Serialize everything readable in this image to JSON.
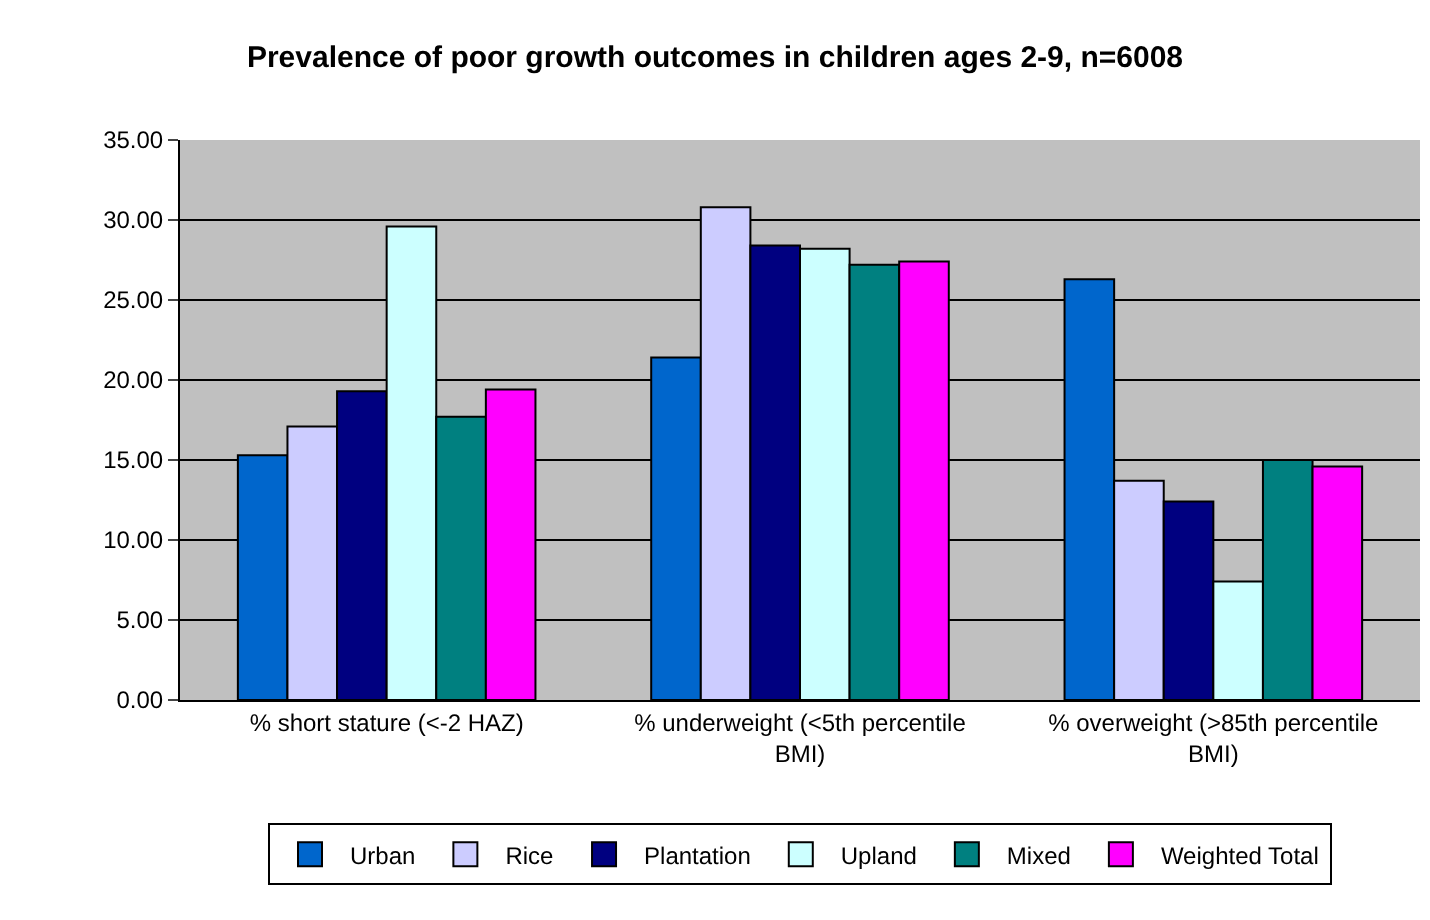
{
  "chart_data": {
    "type": "bar",
    "title": "Prevalence of poor growth outcomes in children ages 2-9, n=6008",
    "categories": [
      "% short stature (<-2 HAZ)",
      "% underweight (<5th percentile BMI)",
      "% overweight (>85th percentile BMI)"
    ],
    "series": [
      {
        "name": "Urban",
        "color": "#0066cc",
        "values": [
          15.3,
          21.4,
          26.3
        ]
      },
      {
        "name": "Rice",
        "color": "#ccccff",
        "values": [
          17.1,
          30.8,
          13.7
        ]
      },
      {
        "name": "Plantation",
        "color": "#000080",
        "values": [
          19.3,
          28.4,
          12.4
        ]
      },
      {
        "name": "Upland",
        "color": "#ccffff",
        "values": [
          29.6,
          28.2,
          7.4
        ]
      },
      {
        "name": "Mixed",
        "color": "#008080",
        "values": [
          17.7,
          27.2,
          15.0
        ]
      },
      {
        "name": "Weighted Total",
        "color": "#ff00ff",
        "values": [
          19.4,
          27.4,
          14.6
        ]
      }
    ],
    "ylim": [
      0,
      35
    ],
    "yticks": [
      {
        "value": 0,
        "label": "0.00"
      },
      {
        "value": 5,
        "label": "5.00"
      },
      {
        "value": 10,
        "label": "10.00"
      },
      {
        "value": 15,
        "label": "15.00"
      },
      {
        "value": 20,
        "label": "20.00"
      },
      {
        "value": 25,
        "label": "25.00"
      },
      {
        "value": 30,
        "label": "30.00"
      },
      {
        "value": 35,
        "label": "35.00"
      }
    ],
    "grid": "y",
    "legend": "bottom"
  }
}
